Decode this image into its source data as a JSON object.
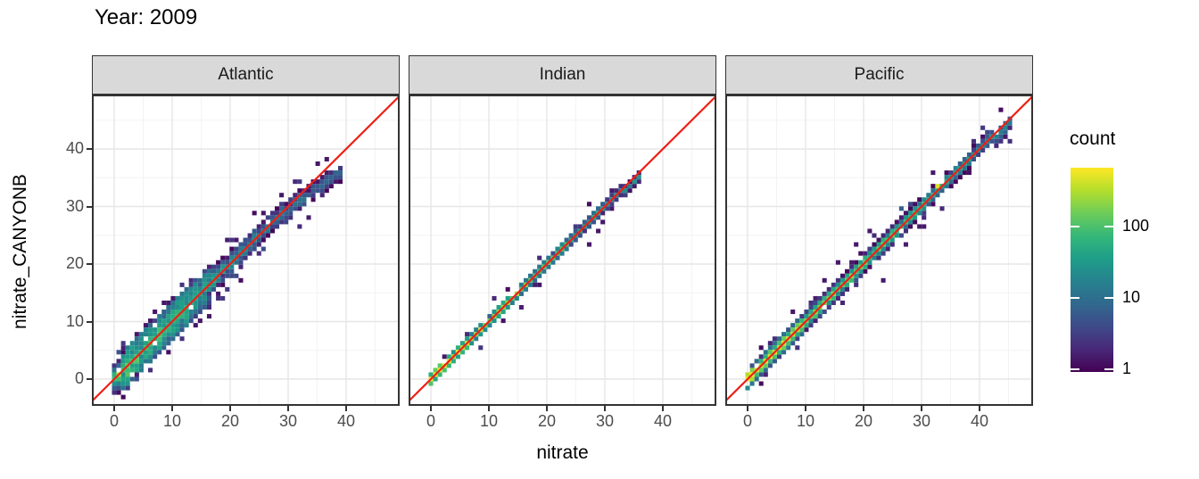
{
  "title": "Year: 2009",
  "axes": {
    "x_label": "nitrate",
    "y_label": "nitrate_CANYONB",
    "x_ticks": [
      0,
      10,
      20,
      30,
      40
    ],
    "y_ticks": [
      0,
      10,
      20,
      30,
      40
    ],
    "x_minor": [
      5,
      15,
      25,
      35,
      45
    ],
    "y_minor": [
      5,
      15,
      25,
      35,
      45
    ],
    "x_domain": [
      -3.85,
      49.25
    ],
    "y_domain": [
      -4.65,
      49.45
    ]
  },
  "legend": {
    "title": "count",
    "ticks": [
      1,
      10,
      100
    ],
    "scale": "log10",
    "max_count": 500
  },
  "colors": {
    "abline": "#ed2015",
    "strip_fill": "#d9d9d9",
    "panel_border": "#333333",
    "grid_major": "#e6e6e6",
    "grid_minor": "#f3f3f3",
    "tick_label": "#4d4d4d",
    "viridis": [
      "#440154",
      "#482878",
      "#3e4a89",
      "#31688e",
      "#26828e",
      "#1f9e89",
      "#35b779",
      "#6dcd59",
      "#b4de2c",
      "#fde725"
    ]
  },
  "chart_data": {
    "type": "heatmap",
    "subtype": "bin2d-scatter",
    "title": "Year: 2009",
    "xlabel": "nitrate",
    "ylabel": "nitrate_CANYONB",
    "facets": [
      "Atlantic",
      "Indian",
      "Pacific"
    ],
    "abline": {
      "slope": 1,
      "intercept": 0,
      "color": "#ed2015"
    },
    "count_scale": "log10",
    "bin_width": 0.78,
    "panels": [
      {
        "facet": "Atlantic",
        "diag_range": [
          0,
          39.5
        ],
        "bend_start": 28,
        "bend_rate": 0.25,
        "max_count": 130,
        "spread": 1.7,
        "wide_low_until": 17,
        "n_scatter": 90,
        "hot": [
          [
            0.6,
            0.6,
            130
          ]
        ],
        "outliers": [
          [
            5.5,
            9.5
          ],
          [
            6,
            10.5
          ],
          [
            7,
            12
          ],
          [
            8.5,
            13
          ],
          [
            4,
            7.5
          ],
          [
            9,
            13.5
          ],
          [
            14,
            9.5
          ],
          [
            15,
            10.3
          ],
          [
            16.5,
            11
          ],
          [
            12,
            16
          ],
          [
            10,
            14
          ],
          [
            6.5,
            3.5
          ],
          [
            21,
            24.5
          ],
          [
            26,
            22.5
          ],
          [
            29,
            32
          ],
          [
            35,
            37.5
          ],
          [
            25.5,
            28.5
          ],
          [
            18,
            14.5
          ]
        ]
      },
      {
        "facet": "Indian",
        "diag_range": [
          0,
          36
        ],
        "bend_start": 30,
        "bend_rate": 0.13,
        "max_count": 600,
        "spread": 0.8,
        "wide_low_until": 0,
        "n_scatter": 18,
        "hot": [
          [
            0.4,
            0.4,
            600
          ]
        ],
        "outliers": [
          [
            27.4,
            23.3
          ],
          [
            2.2,
            4.2
          ],
          [
            28.5,
            26
          ],
          [
            30,
            27.5
          ],
          [
            31.5,
            29.5
          ],
          [
            25,
            26.8
          ]
        ]
      },
      {
        "facet": "Pacific",
        "diag_range": [
          0,
          46
        ],
        "bend_start": 40,
        "bend_rate": 0.15,
        "max_count": 500,
        "spread": 1.1,
        "wide_low_until": 0,
        "n_scatter": 60,
        "hot": [
          [
            0.5,
            0.5,
            450
          ],
          [
            33,
            33.3,
            350
          ]
        ],
        "outliers": [
          [
            15.3,
            20.2
          ],
          [
            23.3,
            17.4
          ],
          [
            13.2,
            16.8
          ],
          [
            21,
            26
          ],
          [
            32,
            35.5
          ],
          [
            30.5,
            26.5
          ],
          [
            44.5,
            42.5
          ],
          [
            19,
            23.5
          ],
          [
            8,
            11.5
          ]
        ]
      }
    ]
  }
}
